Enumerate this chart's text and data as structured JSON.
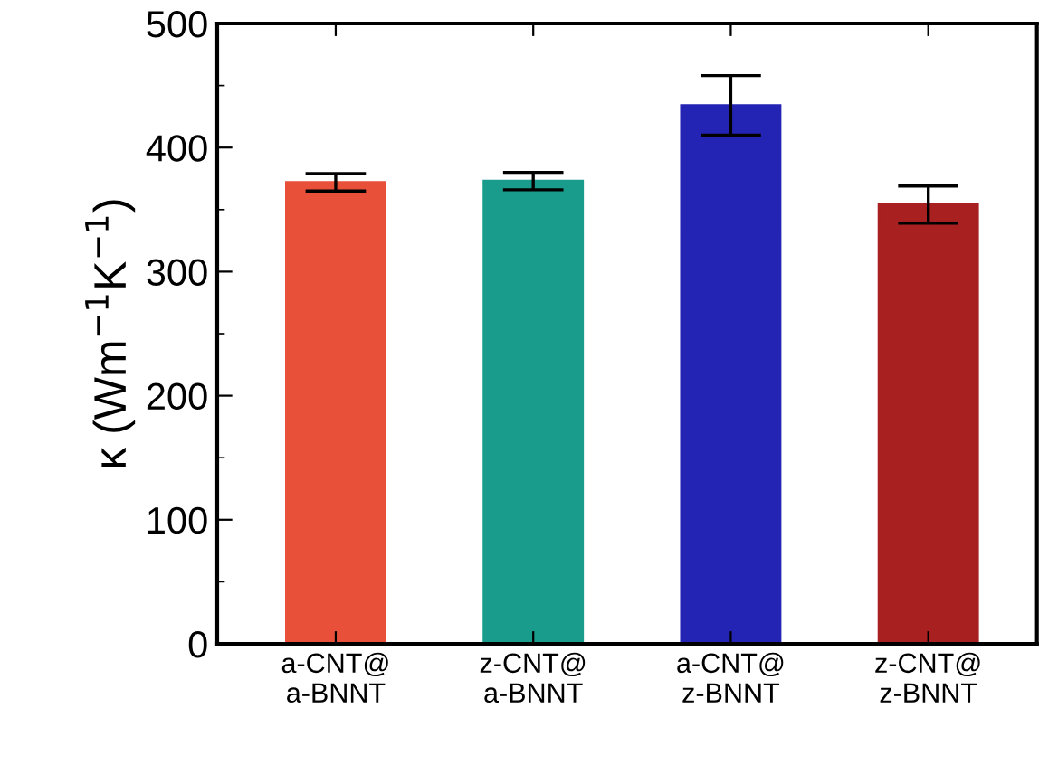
{
  "chart_data": {
    "type": "bar",
    "ylabel": "κ (Wm$^{−1}$K$^{−1}$)",
    "categories": [
      "a-CNT@\na-BNNT",
      "z-CNT@\na-BNNT",
      "a-CNT@\nz-BNNT",
      "z-CNT@\nz-BNNT"
    ],
    "values": [
      372,
      373,
      434,
      354
    ],
    "errors": [
      7,
      7,
      24,
      15
    ],
    "colors": [
      "#e8503a",
      "#1a9c8c",
      "#2424b4",
      "#a82020"
    ],
    "ylim": [
      0,
      500
    ],
    "yticks": [
      0,
      100,
      200,
      300,
      400,
      500
    ],
    "grid": false
  }
}
